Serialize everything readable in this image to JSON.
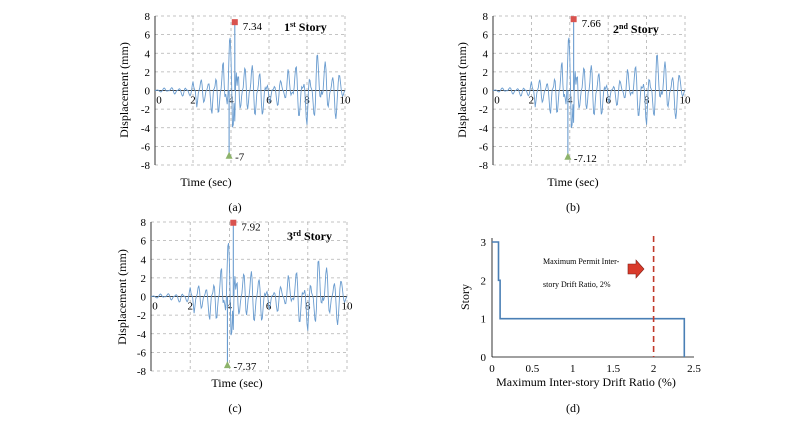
{
  "chart_data": [
    {
      "type": "line",
      "panel_label": "(a)",
      "xlabel": "Time (sec)",
      "ylabel": "Displacement (mm)",
      "story_label": {
        "num": "1",
        "sup": "st",
        "text": " Story"
      },
      "xlim": [
        0,
        10
      ],
      "ylim": [
        -8,
        8
      ],
      "xticks": [
        "0",
        "2",
        "4",
        "6",
        "8",
        "10"
      ],
      "xtick_values": [
        0,
        2,
        4,
        6,
        8,
        10
      ],
      "yticks": [
        "8",
        "6",
        "4",
        "2",
        "0",
        "-2",
        "-4",
        "-6",
        "-8"
      ],
      "ytick_values": [
        8,
        6,
        4,
        2,
        0,
        -2,
        -4,
        -6,
        -8
      ],
      "grid": "dashed",
      "series": [
        {
          "x": [
            0,
            0.5,
            1,
            1.5,
            2,
            2.2,
            2.5,
            3,
            3.3,
            3.6,
            3.9,
            4.1,
            4.2,
            4.4,
            4.8,
            5.2,
            5.6,
            6,
            6.5,
            7,
            7.5,
            8,
            8.5,
            9,
            9.5,
            10
          ],
          "values": [
            0,
            0.3,
            -0.5,
            0.8,
            -1.5,
            3,
            -4,
            5,
            -6,
            5.5,
            -6.8,
            -7,
            7.34,
            -4,
            4,
            -5,
            5,
            -3,
            4,
            -4,
            5,
            -4,
            5,
            -4.5,
            5,
            0
          ]
        }
      ],
      "annotations": [
        {
          "label": "7.34",
          "x": 4.2,
          "y": 7.34,
          "marker": "max"
        },
        {
          "label": "-7",
          "x": 3.9,
          "y": -7,
          "marker": "min"
        }
      ]
    },
    {
      "type": "line",
      "panel_label": "(b)",
      "xlabel": "Time (sec)",
      "ylabel": "Displacement (mm)",
      "story_label": {
        "num": "2",
        "sup": "nd",
        "text": " Story"
      },
      "xlim": [
        0,
        10
      ],
      "ylim": [
        -8,
        8
      ],
      "xticks": [
        "0",
        "2",
        "4",
        "6",
        "8",
        "10"
      ],
      "xtick_values": [
        0,
        2,
        4,
        6,
        8,
        10
      ],
      "yticks": [
        "8",
        "6",
        "4",
        "2",
        "0",
        "-2",
        "-4",
        "-6",
        "-8"
      ],
      "ytick_values": [
        8,
        6,
        4,
        2,
        0,
        -2,
        -4,
        -6,
        -8
      ],
      "grid": "dashed",
      "series": [
        {
          "x": [
            0,
            0.5,
            1,
            1.5,
            2,
            2.2,
            2.5,
            3,
            3.3,
            3.6,
            3.9,
            4.1,
            4.2,
            4.4,
            4.8,
            5.2,
            5.6,
            6,
            6.5,
            7,
            7.5,
            8,
            8.5,
            9,
            9.5,
            10
          ],
          "values": [
            0,
            0.3,
            -0.5,
            0.8,
            -1.5,
            3,
            -4,
            5,
            -6,
            5.5,
            -6.8,
            -7.12,
            7.66,
            -4,
            4,
            -5,
            5,
            -3,
            4,
            -4,
            5,
            -4,
            5,
            -4.5,
            5,
            0
          ]
        }
      ],
      "annotations": [
        {
          "label": "7.66",
          "x": 4.2,
          "y": 7.66,
          "marker": "max"
        },
        {
          "label": "-7.12",
          "x": 3.9,
          "y": -7.12,
          "marker": "min"
        }
      ]
    },
    {
      "type": "line",
      "panel_label": "(c)",
      "xlabel": "Time (sec)",
      "ylabel": "Displacement (mm)",
      "story_label": {
        "num": "3",
        "sup": "rd",
        "text": " Story"
      },
      "xlim": [
        0,
        10
      ],
      "ylim": [
        -8,
        8
      ],
      "xticks": [
        "0",
        "2",
        "4",
        "6",
        "8",
        "10"
      ],
      "xtick_values": [
        0,
        2,
        4,
        6,
        8,
        10
      ],
      "yticks": [
        "8",
        "6",
        "4",
        "2",
        "0",
        "-2",
        "-4",
        "-6",
        "-8"
      ],
      "ytick_values": [
        8,
        6,
        4,
        2,
        0,
        -2,
        -4,
        -6,
        -8
      ],
      "grid": "dashed",
      "series": [
        {
          "x": [
            0,
            0.5,
            1,
            1.5,
            2,
            2.2,
            2.5,
            3,
            3.3,
            3.6,
            3.9,
            4.1,
            4.2,
            4.4,
            4.8,
            5.2,
            5.6,
            6,
            6.5,
            7,
            7.5,
            8,
            8.5,
            9,
            9.5,
            10
          ],
          "values": [
            0,
            0.3,
            -0.5,
            0.8,
            -1.5,
            3,
            -4,
            5,
            -6,
            5.5,
            -6.8,
            -7.37,
            7.92,
            -4,
            4,
            -5,
            5,
            -3,
            4,
            -4,
            5,
            -4,
            5,
            -4.5,
            5,
            0
          ]
        }
      ],
      "annotations": [
        {
          "label": "7.92",
          "x": 4.2,
          "y": 7.92,
          "marker": "max"
        },
        {
          "label": "-7.37",
          "x": 3.9,
          "y": -7.37,
          "marker": "min"
        }
      ]
    },
    {
      "type": "line",
      "panel_label": "(d)",
      "xlabel": "Maximum Inter-story Drift Ratio (%)",
      "ylabel": "Story",
      "xlim": [
        0,
        2.5
      ],
      "ylim": [
        0,
        3
      ],
      "xticks": [
        "0",
        "0.5",
        "1",
        "1.5",
        "2",
        "2.5"
      ],
      "xtick_values": [
        0,
        0.5,
        1,
        1.5,
        2,
        2.5
      ],
      "yticks": [
        "3",
        "2",
        "1",
        "0"
      ],
      "ytick_values": [
        3,
        2,
        1,
        0
      ],
      "grid": "none",
      "series": [
        {
          "x": [
            0,
            0.08,
            0.08,
            0.1,
            0.1,
            2.38,
            2.38
          ],
          "values": [
            3,
            3,
            2,
            2,
            1,
            1,
            0
          ]
        }
      ],
      "limit_line": {
        "x": 2,
        "color": "#c0392b",
        "label_lines": [
          "Maximum Permit Inter-",
          "story Drift Ratio, 2%"
        ]
      },
      "colors": {
        "series": "#4a7fb5",
        "limit": "#c0392b",
        "arrow": "#d93a2b"
      }
    }
  ],
  "colors": {
    "line": "#6a9ccf",
    "max_marker": "#d9534f",
    "min_marker": "#8db36b",
    "grid": "#b0b0b0"
  }
}
